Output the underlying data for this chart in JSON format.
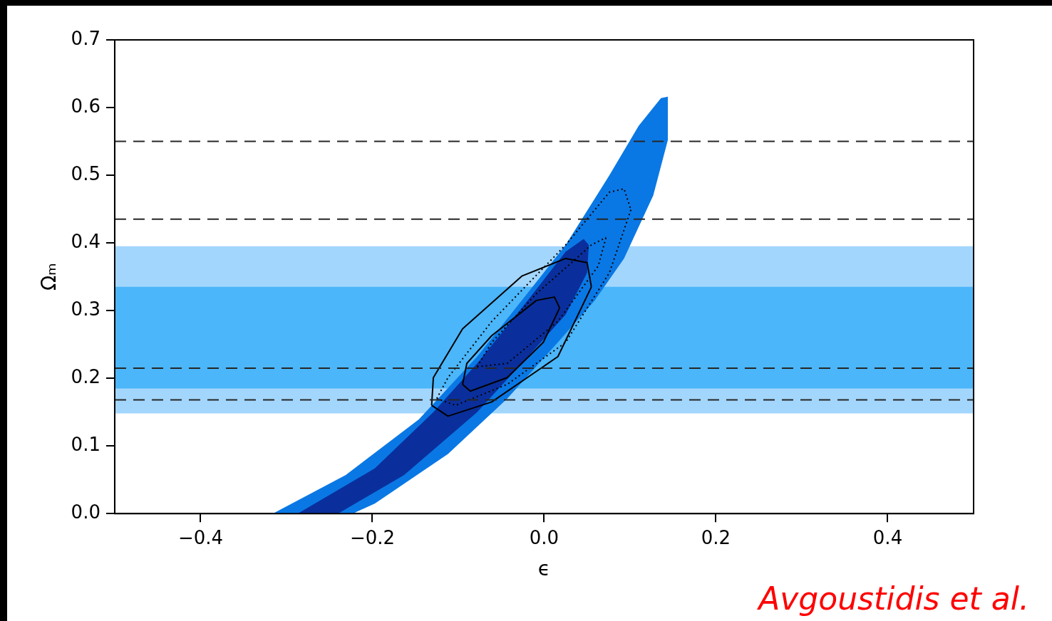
{
  "chart_data": {
    "type": "area",
    "xlabel": "ϵ",
    "ylabel": "Ωₘ",
    "xlim": [
      -0.5,
      0.5
    ],
    "xticks": [
      {
        "value": -0.4,
        "label": "−0.4"
      },
      {
        "value": -0.2,
        "label": "−0.2"
      },
      {
        "value": 0,
        "label": "0.0"
      },
      0.2,
      0.4
    ],
    "ylim": [
      0,
      0.7
    ],
    "yticks": [
      {
        "value": 0,
        "label": "0.0"
      },
      0.1,
      0.2,
      0.3,
      0.4,
      0.5,
      0.6,
      0.7
    ],
    "grid": false,
    "legend": false,
    "bands": [
      {
        "axis": "y",
        "from": 0.148,
        "to": 0.395,
        "color": "#a3d6fd"
      },
      {
        "axis": "y",
        "from": 0.185,
        "to": 0.335,
        "color": "#4bb6f9"
      }
    ],
    "series": [
      {
        "type": "area",
        "color": "#0a78e4",
        "x": [
          -0.316,
          -0.231,
          -0.146,
          -0.078,
          -0.026,
          0.025,
          0.076,
          0.11,
          0.136,
          0.144,
          0.144,
          0.127,
          0.093,
          0.059,
          0.016,
          -0.043,
          -0.112,
          -0.197,
          -0.223,
          -0.316
        ],
        "values": [
          0,
          0.057,
          0.139,
          0.232,
          0.315,
          0.397,
          0.5,
          0.573,
          0.614,
          0.616,
          0.552,
          0.47,
          0.377,
          0.315,
          0.253,
          0.17,
          0.088,
          0.015,
          0,
          0
        ]
      },
      {
        "type": "area",
        "color": "#0a2f9c",
        "x": [
          -0.287,
          -0.197,
          -0.129,
          -0.078,
          -0.026,
          0.025,
          0.046,
          0.052,
          0.05,
          0.025,
          -0.026,
          -0.078,
          -0.163,
          -0.24,
          -0.287
        ],
        "values": [
          0,
          0.067,
          0.15,
          0.222,
          0.304,
          0.387,
          0.406,
          0.397,
          0.356,
          0.294,
          0.222,
          0.15,
          0.057,
          0,
          0
        ]
      },
      {
        "type": "line",
        "color": "#000000",
        "line_style": "solid",
        "x": [
          -0.131,
          -0.112,
          -0.061,
          0.016,
          0.055
        ],
        "values": [
          0.16,
          0.144,
          0.165,
          0.232,
          0.335
        ]
      },
      {
        "type": "line",
        "color": "#000000",
        "line_style": "solid",
        "x": [
          -0.131,
          -0.129,
          -0.095,
          -0.026,
          0.025,
          0.05,
          0.055
        ],
        "values": [
          0.16,
          0.201,
          0.273,
          0.351,
          0.377,
          0.371,
          0.335
        ]
      },
      {
        "type": "line",
        "color": "#000000",
        "line_style": "solid",
        "x": [
          -0.095,
          -0.086,
          -0.043,
          -0.001,
          0.018
        ],
        "values": [
          0.191,
          0.181,
          0.201,
          0.253,
          0.304
        ]
      },
      {
        "type": "line",
        "color": "#000000",
        "line_style": "solid",
        "x": [
          -0.095,
          -0.09,
          -0.061,
          -0.009,
          0.012,
          0.018
        ],
        "values": [
          0.191,
          0.222,
          0.263,
          0.315,
          0.32,
          0.304
        ]
      },
      {
        "type": "line",
        "color": "#000000",
        "line_style": "dotted",
        "x": [
          -0.125,
          -0.103,
          -0.043,
          0.025,
          0.076,
          0.101
        ],
        "values": [
          0.17,
          0.16,
          0.191,
          0.253,
          0.356,
          0.449
        ]
      },
      {
        "type": "line",
        "color": "#000000",
        "line_style": "dotted",
        "x": [
          -0.125,
          -0.112,
          -0.061,
          0.025,
          0.076,
          0.093,
          0.101
        ],
        "values": [
          0.17,
          0.201,
          0.284,
          0.397,
          0.475,
          0.48,
          0.449
        ]
      },
      {
        "type": "line",
        "color": "#000000",
        "line_style": "dotted",
        "x": [
          -0.078,
          -0.043,
          0.016,
          0.063,
          0.072
        ],
        "values": [
          0.217,
          0.222,
          0.284,
          0.366,
          0.408
        ]
      },
      {
        "type": "line",
        "color": "#000000",
        "line_style": "dotted",
        "x": [
          -0.078,
          -0.061,
          -0.009,
          0.055,
          0.072
        ],
        "values": [
          0.217,
          0.253,
          0.325,
          0.397,
          0.408
        ]
      }
    ],
    "ref_lines": [
      {
        "axis": "y",
        "value": 0.55,
        "line_style": "dashed",
        "color": "#262626"
      },
      {
        "axis": "y",
        "value": 0.435,
        "line_style": "dashed",
        "color": "#262626"
      },
      {
        "axis": "y",
        "value": 0.215,
        "line_style": "dashed",
        "color": "#262626"
      },
      {
        "axis": "y",
        "value": 0.168,
        "line_style": "dashed",
        "color": "#262626"
      }
    ],
    "annotations": [
      "Avgoustidis et al."
    ]
  }
}
